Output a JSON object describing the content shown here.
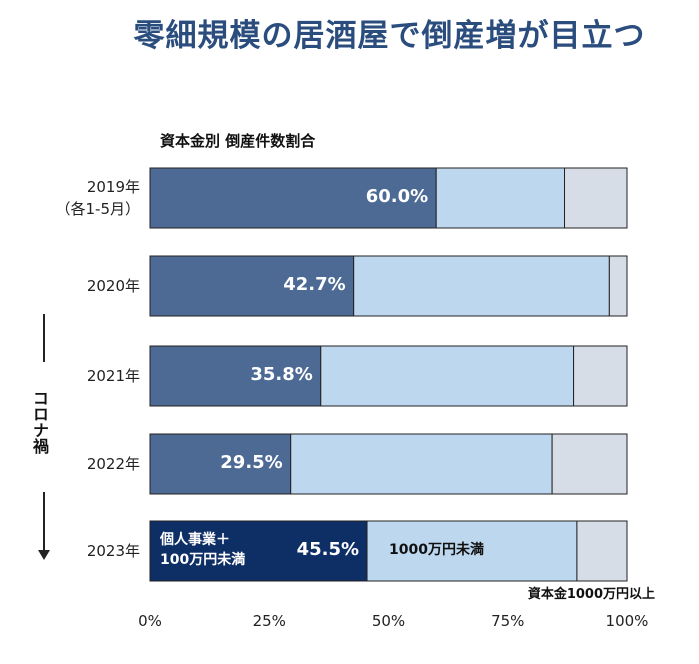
{
  "title": "零細規模の居酒屋で倒産増が目立つ",
  "colors": {
    "small": "#4d6a95",
    "small_highlight": "#0e2e66",
    "mid": "#bdd7ee",
    "large": "#d6dde6",
    "title": "#2a4d7e"
  },
  "chart_data": {
    "type": "bar",
    "orientation": "horizontal",
    "stacked": true,
    "title": "零細規模の居酒屋で倒産増が目立つ",
    "subtitle": "資本金別 倒産件数割合",
    "categories": [
      "2019年（各1-5月）",
      "2020年",
      "2021年",
      "2022年",
      "2023年"
    ],
    "category_labels": [
      [
        "2019年",
        "（各1-5月）"
      ],
      [
        "2020年"
      ],
      [
        "2021年"
      ],
      [
        "2022年"
      ],
      [
        "2023年"
      ]
    ],
    "series": [
      {
        "name": "個人事業＋100万円未満",
        "values": [
          60.0,
          42.7,
          35.8,
          29.5,
          45.5
        ]
      },
      {
        "name": "1000万円未満",
        "values": [
          26.9,
          53.6,
          53.0,
          54.8,
          44.0
        ]
      },
      {
        "name": "資本金1000万円以上",
        "values": [
          13.1,
          3.7,
          11.2,
          15.7,
          10.5
        ]
      }
    ],
    "value_labels": [
      "60.0%",
      "42.7%",
      "35.8%",
      "29.5%",
      "45.5%"
    ],
    "legend_inline": {
      "small": [
        "個人事業＋",
        "100万円未満"
      ],
      "mid": "1000万円未満",
      "large": "資本金1000万円以上"
    },
    "xlim": [
      0,
      100
    ],
    "x_ticks": [
      0,
      25,
      50,
      75,
      100
    ],
    "x_tick_labels": [
      "0%",
      "25%",
      "50%",
      "75%",
      "100%"
    ],
    "annotation": "コロナ禍"
  }
}
